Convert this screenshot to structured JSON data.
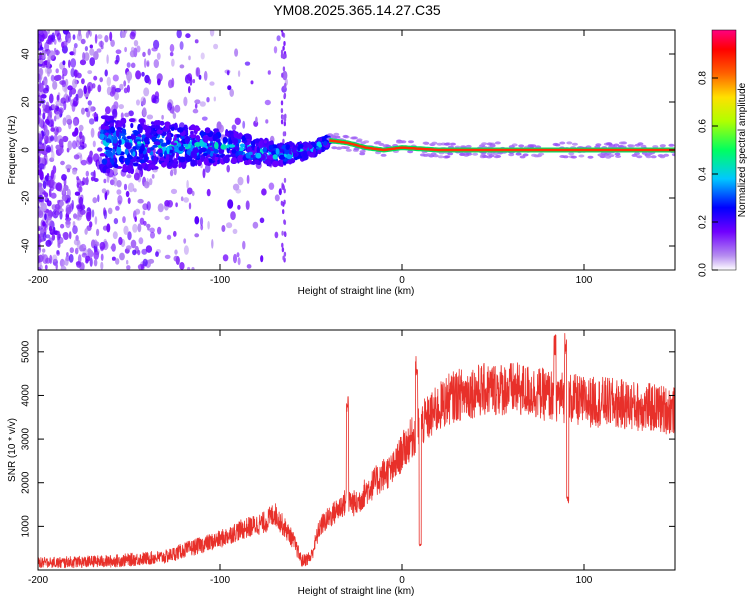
{
  "title": "YM08.2025.365.14.27.C35",
  "chart_data": [
    {
      "type": "heatmap",
      "xlabel": "Height of straight line (km)",
      "ylabel": "Frequency (Hz)",
      "xlim": [
        -200,
        150
      ],
      "ylim": [
        -50,
        50
      ],
      "xticks": [
        "-200",
        "-100",
        "0",
        "100"
      ],
      "yticks": [
        "-40",
        "-20",
        "0",
        "20",
        "40"
      ],
      "colorbar": {
        "label": "Normalized spectral amplitude",
        "range": [
          0,
          1
        ],
        "ticks": [
          "0.0",
          "0.2",
          "0.4",
          "0.6",
          "0.8"
        ],
        "colors": [
          "#ffffff",
          "#8a2be2",
          "#0000ff",
          "#00ffff",
          "#00ff00",
          "#ffff00",
          "#ff8800",
          "#ff0000",
          "#ff0080"
        ]
      },
      "ridge": [
        [
          -160,
          2
        ],
        [
          -120,
          2
        ],
        [
          -90,
          1
        ],
        [
          -70,
          -2
        ],
        [
          -60,
          -1
        ],
        [
          -50,
          0
        ],
        [
          -40,
          4
        ],
        [
          -30,
          3
        ],
        [
          -20,
          1
        ],
        [
          -10,
          0
        ],
        [
          0,
          1
        ],
        [
          20,
          0
        ],
        [
          80,
          0
        ],
        [
          150,
          0
        ]
      ]
    },
    {
      "type": "line",
      "xlabel": "Height of straight line (km)",
      "ylabel": "SNR (10 * v/v)",
      "xlim": [
        -200,
        150
      ],
      "ylim": [
        0,
        5500
      ],
      "xticks": [
        "-200",
        "-100",
        "0",
        "100"
      ],
      "yticks": [
        "1000",
        "2000",
        "3000",
        "4000",
        "5000"
      ],
      "color": "#e8302a",
      "series": [
        {
          "name": "SNR",
          "x": [
            -200,
            -160,
            -130,
            -120,
            -100,
            -90,
            -75,
            -70,
            -60,
            -55,
            -50,
            -45,
            -40,
            -30,
            -25,
            -20,
            -10,
            -5,
            0,
            5,
            10,
            15,
            20,
            25,
            30,
            40,
            50,
            60,
            70,
            80,
            85,
            90,
            95,
            100,
            110,
            120,
            130,
            140,
            150
          ],
          "y": [
            150,
            200,
            300,
            450,
            700,
            900,
            1100,
            1300,
            700,
            200,
            300,
            1000,
            1200,
            1600,
            1500,
            1800,
            2200,
            2300,
            2700,
            3000,
            3300,
            3500,
            3700,
            3900,
            4000,
            4100,
            4150,
            4150,
            4100,
            4000,
            4000,
            3950,
            3900,
            3850,
            3850,
            3800,
            3750,
            3700,
            3650
          ]
        }
      ],
      "spikes": [
        {
          "x": -30,
          "y": 4000
        },
        {
          "x": 8,
          "y": 4900
        },
        {
          "x": 10,
          "y": 600
        },
        {
          "x": 84,
          "y": 5400
        },
        {
          "x": 90,
          "y": 5500
        },
        {
          "x": 91,
          "y": 1700
        }
      ]
    }
  ]
}
